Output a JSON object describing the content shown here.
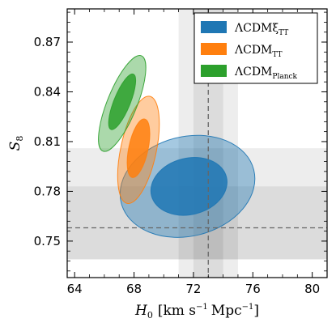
{
  "chart_data": {
    "type": "scatter",
    "xlabel": "H",
    "xlabel_sub": "0",
    "xlabel_units": "[km s",
    "xlabel_exp": "−1",
    "xlabel_units_end": "Mpc",
    "xlabel_exp2": "−1",
    "xlabel_close": "]",
    "ylabel": "S",
    "ylabel_sub": "8",
    "xlim": [
      63.5,
      81.0
    ],
    "ylim": [
      0.728,
      0.89
    ],
    "xticks": [
      64,
      68,
      72,
      76,
      80
    ],
    "yticks": [
      0.75,
      0.78,
      0.81,
      0.84,
      0.87
    ],
    "xtick_labels": [
      "64",
      "68",
      "72",
      "76",
      "80"
    ],
    "ytick_labels": [
      "0.75",
      "0.78",
      "0.81",
      "0.84",
      "0.87"
    ],
    "grid": false,
    "legend_placement": "top-right",
    "bands": [
      {
        "axis": "x",
        "center": 73.0,
        "sigma1": [
          72.0,
          74.0
        ],
        "sigma2": [
          71.0,
          75.0
        ]
      },
      {
        "axis": "y",
        "center": 0.758,
        "sigma1": [
          0.739,
          0.783
        ],
        "sigma2": [
          0.739,
          0.806
        ]
      }
    ],
    "reference_lines": [
      {
        "axis": "x",
        "value": 73.0
      },
      {
        "axis": "y",
        "value": 0.758
      }
    ],
    "series": [
      {
        "name": "ΛCDMξ",
        "name_sub": "TT",
        "color": "#1f77b4",
        "contours": [
          {
            "level": "2σ",
            "center": [
              71.6,
              0.783
            ],
            "semi_axes": [
              4.6,
              0.03
            ],
            "rotation_deg": -14
          },
          {
            "level": "1σ",
            "center": [
              71.7,
              0.783
            ],
            "semi_axes": [
              2.6,
              0.017
            ],
            "rotation_deg": -14
          }
        ]
      },
      {
        "name": "ΛCDM",
        "name_sub": "TT",
        "color": "#ff7f0e",
        "contours": [
          {
            "level": "2σ",
            "center": [
              68.3,
              0.805
            ],
            "semi_axes": [
              1.2,
              0.033
            ],
            "rotation_deg": 12
          },
          {
            "level": "1σ",
            "center": [
              68.3,
              0.806
            ],
            "semi_axes": [
              0.65,
              0.018
            ],
            "rotation_deg": 12
          }
        ]
      },
      {
        "name": "ΛCDM",
        "name_sub": "Planck",
        "color": "#2ca02c",
        "contours": [
          {
            "level": "2σ",
            "center": [
              67.2,
              0.833
            ],
            "semi_axes": [
              1.0,
              0.031
            ],
            "rotation_deg": 22
          },
          {
            "level": "1σ",
            "center": [
              67.2,
              0.834
            ],
            "semi_axes": [
              0.55,
              0.018
            ],
            "rotation_deg": 22
          }
        ]
      }
    ]
  }
}
